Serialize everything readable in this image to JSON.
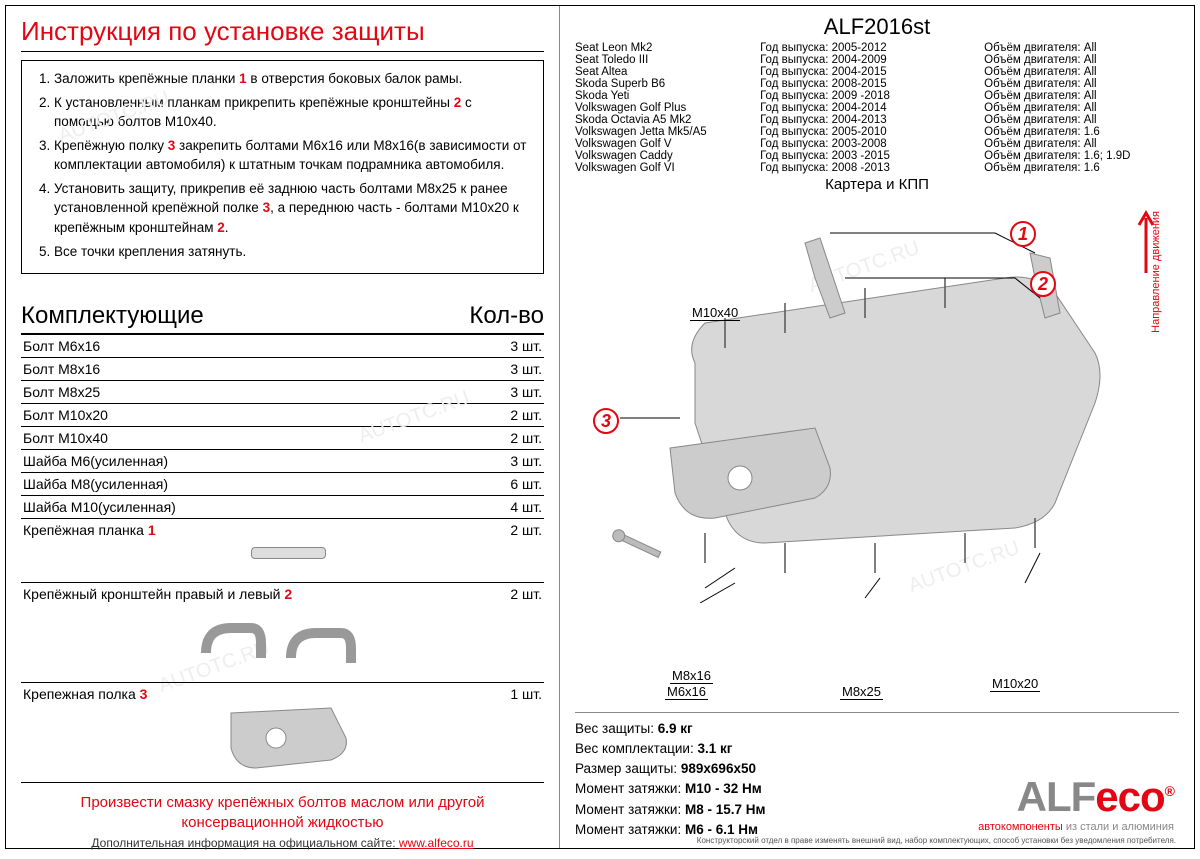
{
  "title": "Инструкция по установке защиты",
  "instructions": [
    {
      "pre": "Заложить крепёжные планки ",
      "n": "1",
      "post": " в отверстия боковых балок рамы."
    },
    {
      "pre": "К установленным планкам прикрепить крепёжные кронштейны ",
      "n": "2",
      "post": " с помощью болтов М10х40."
    },
    {
      "pre": "Крепёжную полку ",
      "n": "3",
      "post": " закрепить болтами М6х16 или М8х16(в зависимости от комплектации автомобиля) к штатным точкам подрамника автомобиля."
    },
    {
      "pre": "Установить защиту, прикрепив её заднюю часть болтами М8х25 к ранее установленной крепёжной полке ",
      "n": "3",
      "post": ", а переднюю часть - болтами М10х20 к крепёжным кронштейнам ",
      "n2": "2",
      "post2": "."
    },
    {
      "pre": "Все точки крепления затянуть.",
      "n": "",
      "post": ""
    }
  ],
  "comp_header_l": "Комплектующие",
  "comp_header_r": "Кол-во",
  "components": [
    {
      "name": "Болт М6х16",
      "qty": "3 шт.",
      "h": ""
    },
    {
      "name": "Болт М8х16",
      "qty": "3 шт.",
      "h": ""
    },
    {
      "name": "Болт М8х25",
      "qty": "3 шт.",
      "h": ""
    },
    {
      "name": "Болт М10х20",
      "qty": "2 шт.",
      "h": ""
    },
    {
      "name": "Болт М10х40",
      "qty": "2 шт.",
      "h": ""
    },
    {
      "name": "Шайба М6(усиленная)",
      "qty": "3 шт.",
      "h": ""
    },
    {
      "name": "Шайба М8(усиленная)",
      "qty": "6 шт.",
      "h": ""
    },
    {
      "name": "Шайба М10(усиленная)",
      "qty": "4 шт.",
      "h": ""
    },
    {
      "name": "Крепёжная планка",
      "n": "1",
      "qty": "2 шт.",
      "h": "tall"
    },
    {
      "name": "Крепёжный кронштейн правый и левый",
      "n": "2",
      "qty": "2 шт.",
      "h": "vtall"
    },
    {
      "name": "Крепежная полка",
      "n": "3",
      "qty": "1 шт.",
      "h": "vtall"
    }
  ],
  "footer_note_l1": "Произвести смазку крепёжных болтов маслом или другой",
  "footer_note_l2": "консервационной жидкостью",
  "footer_site_pre": "Дополнительная информация на официальном сайте: ",
  "footer_site_url": "www.alfeco.ru",
  "product_code": "ALF2016st",
  "vehicles": [
    {
      "m": "Seat Leon Mk2",
      "y": "Год выпуска: 2005-2012",
      "e": "Объём двигателя: All"
    },
    {
      "m": "Seat Toledo III",
      "y": "Год выпуска: 2004-2009",
      "e": "Объём двигателя: All"
    },
    {
      "m": "Seat Altea",
      "y": "Год выпуска: 2004-2015",
      "e": "Объём двигателя: All"
    },
    {
      "m": "Skoda Superb B6",
      "y": "Год выпуска: 2008-2015",
      "e": "Объём двигателя: All"
    },
    {
      "m": "Skoda Yeti",
      "y": "Год выпуска: 2009 -2018",
      "e": "Объём двигателя: All"
    },
    {
      "m": "Volkswagen Golf Plus",
      "y": "Год выпуска: 2004-2014",
      "e": "Объём двигателя: All"
    },
    {
      "m": "Skoda Octavia A5 Mk2",
      "y": "Год выпуска: 2004-2013",
      "e": "Объём двигателя: All"
    },
    {
      "m": "Volkswagen Jetta Mk5/A5",
      "y": "Год выпуска: 2005-2010",
      "e": "Объём двигателя: 1.6"
    },
    {
      "m": "Volkswagen Golf V",
      "y": "Год выпуска: 2003-2008",
      "e": "Объём двигателя: All"
    },
    {
      "m": "Volkswagen Caddy",
      "y": "Год выпуска: 2003 -2015",
      "e": "Объём двигателя: 1.6; 1.9D"
    },
    {
      "m": "Volkswagen Golf VI",
      "y": "Год выпуска: 2008 -2013",
      "e": "Объём двигателя: 1.6"
    }
  ],
  "subtitle": "Картера и КПП",
  "direction_label": "Направление движения",
  "bolt_labels": {
    "m10x40": "M10x40",
    "m8x16": "M8x16",
    "m6x16": "M6x16",
    "m8x25": "M8x25",
    "m10x20": "M10x20"
  },
  "callouts": {
    "c1": "1",
    "c2": "2",
    "c3": "3"
  },
  "specs": [
    {
      "l": "Вес защиты: ",
      "v": "6.9 кг"
    },
    {
      "l": "Вес комплектации: ",
      "v": "3.1 кг"
    },
    {
      "l": "Размер защиты: ",
      "v": "989x696x50"
    },
    {
      "l": "Момент затяжки:   ",
      "v": "M10 - 32 Нм"
    },
    {
      "l": "Момент затяжки:   ",
      "v": "M8 - 15.7 Нм"
    },
    {
      "l": "Момент затяжки:   ",
      "v": "M6 - 6.1 Нм"
    }
  ],
  "logo": {
    "part1": "ALF",
    "part2": "eco",
    "reg": "®",
    "sub_red": "автокомпоненты ",
    "sub_gray": "из стали и алюминия"
  },
  "disclaimer": "Конструкторский отдел в праве изменять внешний вид, набор комплектующих, способ установки без уведомления потребителя.",
  "colors": {
    "red": "#e30613",
    "gray": "#888888",
    "text": "#000000"
  }
}
